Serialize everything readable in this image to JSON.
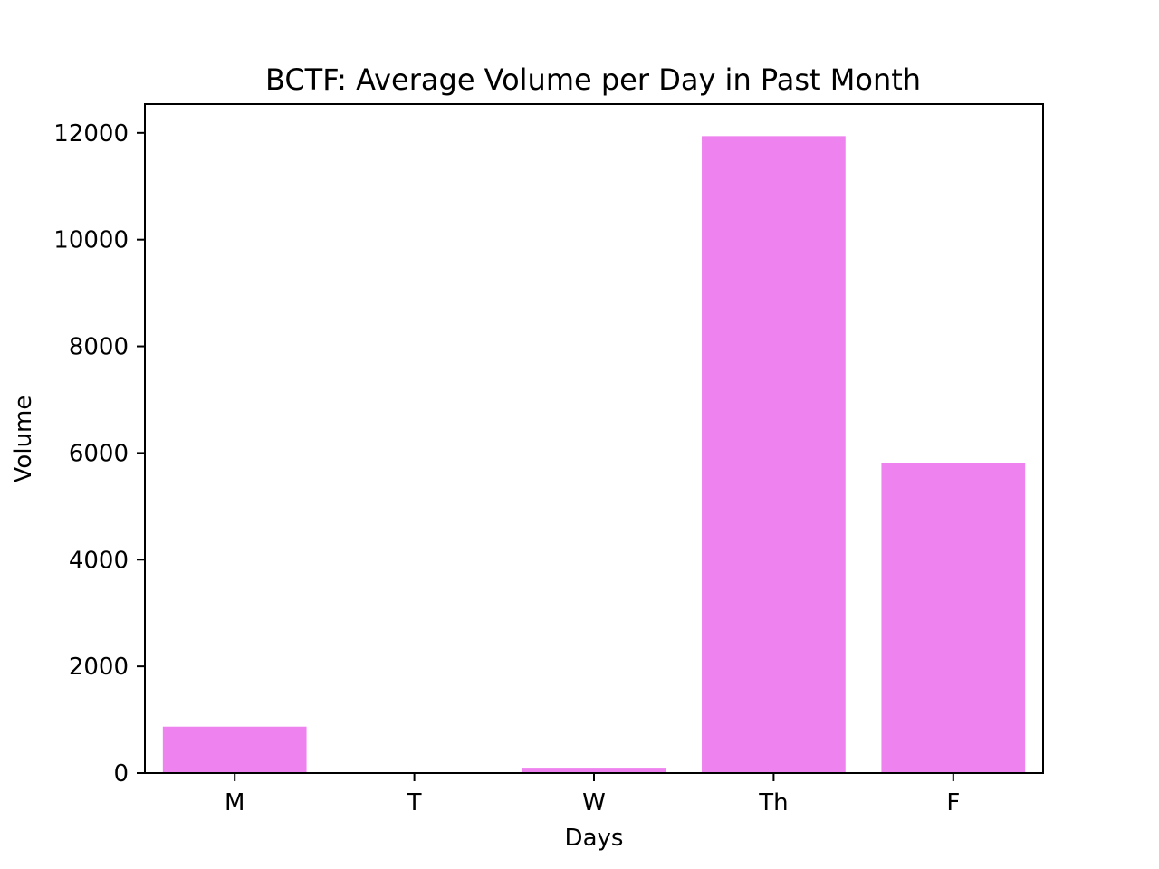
{
  "chart_data": {
    "type": "bar",
    "title": "BCTF: Average Volume per Day in Past Month",
    "xlabel": "Days",
    "ylabel": "Volume",
    "categories": [
      "M",
      "T",
      "W",
      "Th",
      "F"
    ],
    "values": [
      870,
      0,
      100,
      11940,
      5820
    ],
    "ylim": [
      0,
      12540
    ],
    "yticks": [
      0,
      2000,
      4000,
      6000,
      8000,
      10000,
      12000
    ],
    "grid": false,
    "legend": "none",
    "bar_color": "#ee82ee"
  }
}
